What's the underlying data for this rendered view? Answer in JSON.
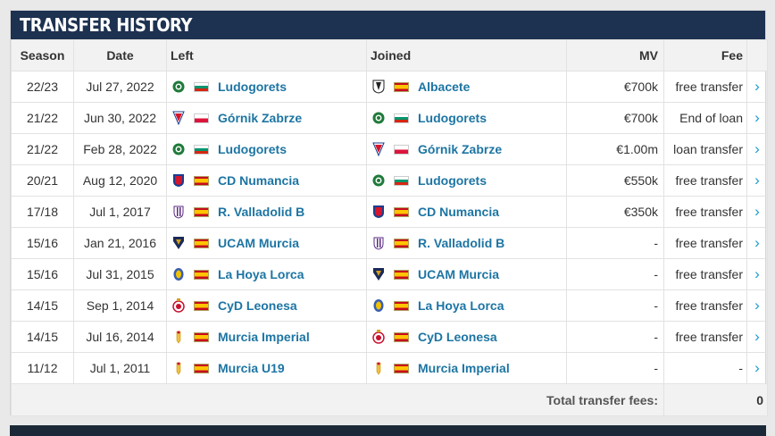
{
  "header": {
    "title": "TRANSFER HISTORY"
  },
  "columns": {
    "season": "Season",
    "date": "Date",
    "left": "Left",
    "joined": "Joined",
    "mv": "MV",
    "fee": "Fee"
  },
  "rows": [
    {
      "season": "22/23",
      "date": "Jul 27, 2022",
      "left": {
        "name": "Ludogorets",
        "flag": "bulgaria-flag",
        "crest": "ludogorets-crest"
      },
      "joined": {
        "name": "Albacete",
        "flag": "spain-flag",
        "crest": "albacete-crest"
      },
      "mv": "€700k",
      "fee": "free transfer"
    },
    {
      "season": "21/22",
      "date": "Jun 30, 2022",
      "left": {
        "name": "Górnik Zabrze",
        "flag": "poland-flag",
        "crest": "gornik-zabrze-crest"
      },
      "joined": {
        "name": "Ludogorets",
        "flag": "bulgaria-flag",
        "crest": "ludogorets-crest"
      },
      "mv": "€700k",
      "fee": "End of loan"
    },
    {
      "season": "21/22",
      "date": "Feb 28, 2022",
      "left": {
        "name": "Ludogorets",
        "flag": "bulgaria-flag",
        "crest": "ludogorets-crest"
      },
      "joined": {
        "name": "Górnik Zabrze",
        "flag": "poland-flag",
        "crest": "gornik-zabrze-crest"
      },
      "mv": "€1.00m",
      "fee": "loan transfer"
    },
    {
      "season": "20/21",
      "date": "Aug 12, 2020",
      "left": {
        "name": "CD Numancia",
        "flag": "spain-flag",
        "crest": "numancia-crest"
      },
      "joined": {
        "name": "Ludogorets",
        "flag": "bulgaria-flag",
        "crest": "ludogorets-crest"
      },
      "mv": "€550k",
      "fee": "free transfer"
    },
    {
      "season": "17/18",
      "date": "Jul 1, 2017",
      "left": {
        "name": "R. Valladolid B",
        "flag": "spain-flag",
        "crest": "valladolid-crest"
      },
      "joined": {
        "name": "CD Numancia",
        "flag": "spain-flag",
        "crest": "numancia-crest"
      },
      "mv": "€350k",
      "fee": "free transfer"
    },
    {
      "season": "15/16",
      "date": "Jan 21, 2016",
      "left": {
        "name": "UCAM Murcia",
        "flag": "spain-flag",
        "crest": "ucam-murcia-crest"
      },
      "joined": {
        "name": "R. Valladolid B",
        "flag": "spain-flag",
        "crest": "valladolid-crest"
      },
      "mv": "-",
      "fee": "free transfer"
    },
    {
      "season": "15/16",
      "date": "Jul 31, 2015",
      "left": {
        "name": "La Hoya Lorca",
        "flag": "spain-flag",
        "crest": "la-hoya-lorca-crest"
      },
      "joined": {
        "name": "UCAM Murcia",
        "flag": "spain-flag",
        "crest": "ucam-murcia-crest"
      },
      "mv": "-",
      "fee": "free transfer"
    },
    {
      "season": "14/15",
      "date": "Sep 1, 2014",
      "left": {
        "name": "CyD Leonesa",
        "flag": "spain-flag",
        "crest": "leonesa-crest"
      },
      "joined": {
        "name": "La Hoya Lorca",
        "flag": "spain-flag",
        "crest": "la-hoya-lorca-crest"
      },
      "mv": "-",
      "fee": "free transfer"
    },
    {
      "season": "14/15",
      "date": "Jul 16, 2014",
      "left": {
        "name": "Murcia Imperial",
        "flag": "spain-flag",
        "crest": "murcia-imperial-crest"
      },
      "joined": {
        "name": "CyD Leonesa",
        "flag": "spain-flag",
        "crest": "leonesa-crest"
      },
      "mv": "-",
      "fee": "free transfer"
    },
    {
      "season": "11/12",
      "date": "Jul 1, 2011",
      "left": {
        "name": "Murcia U19",
        "flag": "spain-flag",
        "crest": "murcia-imperial-crest"
      },
      "joined": {
        "name": "Murcia Imperial",
        "flag": "spain-flag",
        "crest": "murcia-imperial-crest"
      },
      "mv": "-",
      "fee": "-"
    }
  ],
  "footer": {
    "total_label": "Total transfer fees:",
    "total_value": "0"
  },
  "colors": {
    "header_bg": "#1d3150",
    "link": "#1d75a3",
    "arrow": "#1d9bd6"
  }
}
